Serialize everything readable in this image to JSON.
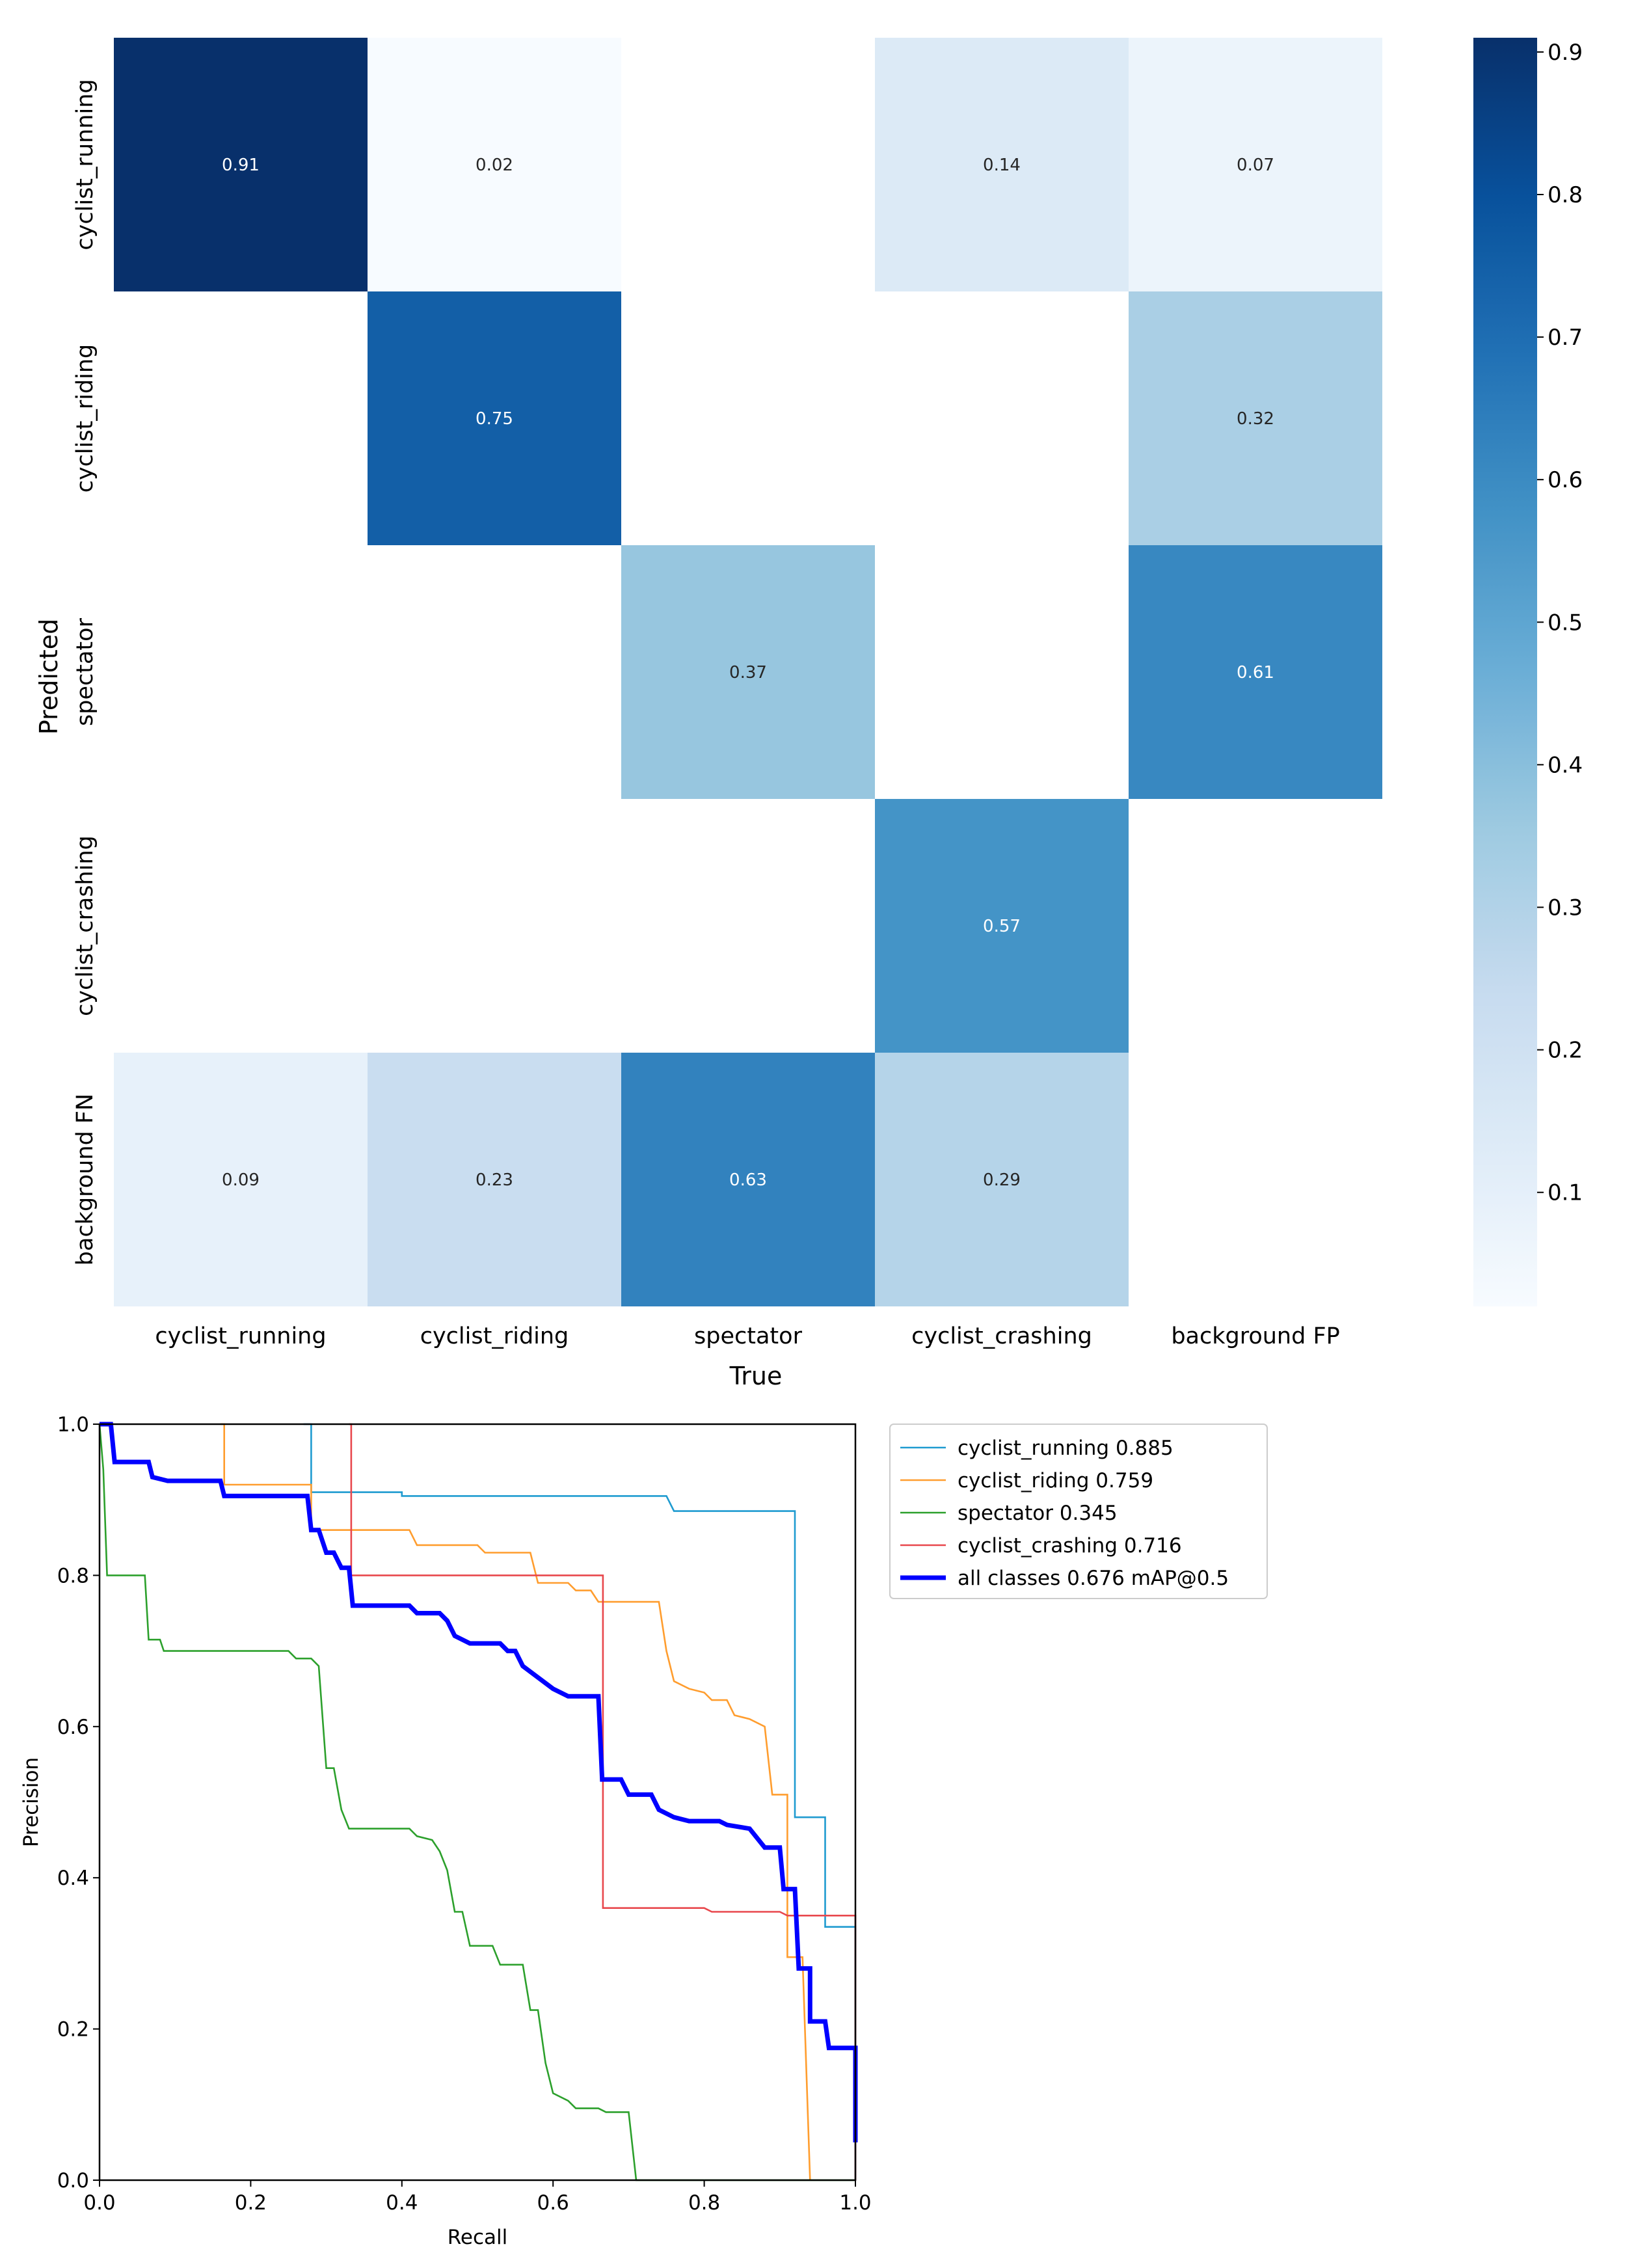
{
  "colors": {
    "cmap": [
      "#f7fbff",
      "#deebf7",
      "#c6dbef",
      "#9ecae1",
      "#6baed6",
      "#4292c6",
      "#2171b5",
      "#08519c",
      "#08306b"
    ],
    "cell_text_light": "#ffffff",
    "cell_text_dark": "#262626",
    "cyclist_running": "#1f9bd0",
    "cyclist_riding": "#ff9d2e",
    "spectator": "#2ca02c",
    "cyclist_crashing": "#e8474c",
    "all_classes": "#0000ff"
  },
  "chart_data": [
    {
      "type": "heatmap",
      "name": "confusion_matrix",
      "xlabel": "True",
      "ylabel": "Predicted",
      "x_categories": [
        "cyclist_running",
        "cyclist_riding",
        "spectator",
        "cyclist_crashing",
        "background FP"
      ],
      "y_categories": [
        "cyclist_running",
        "cyclist_riding",
        "spectator",
        "cyclist_crashing",
        "background FN"
      ],
      "values": [
        [
          0.91,
          0.02,
          null,
          0.14,
          0.07
        ],
        [
          null,
          0.75,
          null,
          null,
          0.32
        ],
        [
          null,
          null,
          0.37,
          null,
          0.61
        ],
        [
          null,
          null,
          null,
          0.57,
          null
        ],
        [
          0.09,
          0.23,
          0.63,
          0.29,
          null
        ]
      ],
      "colorbar": {
        "range": [
          0.02,
          0.91
        ],
        "ticks": [
          0.1,
          0.2,
          0.3,
          0.4,
          0.5,
          0.6,
          0.7,
          0.8,
          0.9
        ],
        "tick_labels": [
          "0.1",
          "0.2",
          "0.3",
          "0.4",
          "0.5",
          "0.6",
          "0.7",
          "0.8",
          "0.9"
        ]
      }
    },
    {
      "type": "line",
      "name": "precision_recall_curve",
      "xlabel": "Recall",
      "ylabel": "Precision",
      "xlim": [
        0,
        1
      ],
      "ylim": [
        0,
        1
      ],
      "x_ticks": [
        0.0,
        0.2,
        0.4,
        0.6,
        0.8,
        1.0
      ],
      "x_tick_labels": [
        "0.0",
        "0.2",
        "0.4",
        "0.6",
        "0.8",
        "1.0"
      ],
      "y_ticks": [
        0.0,
        0.2,
        0.4,
        0.6,
        0.8,
        1.0
      ],
      "y_tick_labels": [
        "0.0",
        "0.2",
        "0.4",
        "0.6",
        "0.8",
        "1.0"
      ],
      "legend_position": "right, outside plot, upper",
      "series": [
        {
          "name": "cyclist_running",
          "legend": "cyclist_running 0.885",
          "color_key": "cyclist_running",
          "bold": false,
          "points": [
            [
              0.27,
              1.0
            ],
            [
              0.28,
              1.0
            ],
            [
              0.28,
              0.91
            ],
            [
              0.4,
              0.91
            ],
            [
              0.4,
              0.905
            ],
            [
              0.75,
              0.905
            ],
            [
              0.76,
              0.885
            ],
            [
              0.92,
              0.885
            ],
            [
              0.92,
              0.48
            ],
            [
              0.96,
              0.48
            ],
            [
              0.96,
              0.335
            ],
            [
              1.0,
              0.335
            ],
            [
              1.0,
              0.0
            ]
          ]
        },
        {
          "name": "cyclist_riding",
          "legend": "cyclist_riding 0.759",
          "color_key": "cyclist_riding",
          "bold": false,
          "points": [
            [
              0.16,
              1.0
            ],
            [
              0.165,
              1.0
            ],
            [
              0.165,
              0.92
            ],
            [
              0.28,
              0.92
            ],
            [
              0.28,
              0.86
            ],
            [
              0.41,
              0.86
            ],
            [
              0.42,
              0.84
            ],
            [
              0.5,
              0.84
            ],
            [
              0.51,
              0.83
            ],
            [
              0.57,
              0.83
            ],
            [
              0.58,
              0.79
            ],
            [
              0.62,
              0.79
            ],
            [
              0.63,
              0.78
            ],
            [
              0.65,
              0.78
            ],
            [
              0.66,
              0.765
            ],
            [
              0.71,
              0.765
            ],
            [
              0.74,
              0.765
            ],
            [
              0.75,
              0.7
            ],
            [
              0.76,
              0.66
            ],
            [
              0.78,
              0.65
            ],
            [
              0.8,
              0.645
            ],
            [
              0.81,
              0.635
            ],
            [
              0.83,
              0.635
            ],
            [
              0.84,
              0.615
            ],
            [
              0.86,
              0.61
            ],
            [
              0.88,
              0.6
            ],
            [
              0.89,
              0.51
            ],
            [
              0.91,
              0.51
            ],
            [
              0.91,
              0.295
            ],
            [
              0.93,
              0.295
            ],
            [
              0.94,
              0.0
            ]
          ]
        },
        {
          "name": "spectator",
          "legend": "spectator 0.345",
          "color_key": "spectator",
          "bold": false,
          "points": [
            [
              0.0,
              1.0
            ],
            [
              0.005,
              0.94
            ],
            [
              0.01,
              0.8
            ],
            [
              0.06,
              0.8
            ],
            [
              0.065,
              0.715
            ],
            [
              0.08,
              0.715
            ],
            [
              0.085,
              0.7
            ],
            [
              0.25,
              0.7
            ],
            [
              0.26,
              0.69
            ],
            [
              0.28,
              0.69
            ],
            [
              0.29,
              0.68
            ],
            [
              0.3,
              0.545
            ],
            [
              0.31,
              0.545
            ],
            [
              0.32,
              0.49
            ],
            [
              0.33,
              0.465
            ],
            [
              0.41,
              0.465
            ],
            [
              0.42,
              0.455
            ],
            [
              0.44,
              0.45
            ],
            [
              0.45,
              0.435
            ],
            [
              0.46,
              0.41
            ],
            [
              0.47,
              0.355
            ],
            [
              0.48,
              0.355
            ],
            [
              0.49,
              0.31
            ],
            [
              0.52,
              0.31
            ],
            [
              0.53,
              0.285
            ],
            [
              0.56,
              0.285
            ],
            [
              0.57,
              0.225
            ],
            [
              0.58,
              0.225
            ],
            [
              0.59,
              0.155
            ],
            [
              0.6,
              0.115
            ],
            [
              0.62,
              0.105
            ],
            [
              0.63,
              0.095
            ],
            [
              0.66,
              0.095
            ],
            [
              0.67,
              0.09
            ],
            [
              0.7,
              0.09
            ],
            [
              0.71,
              0.0
            ],
            [
              1.0,
              0.0
            ]
          ]
        },
        {
          "name": "cyclist_crashing",
          "legend": "cyclist_crashing 0.716",
          "color_key": "cyclist_crashing",
          "bold": false,
          "points": [
            [
              0.33,
              1.0
            ],
            [
              0.333,
              1.0
            ],
            [
              0.333,
              0.8
            ],
            [
              0.666,
              0.8
            ],
            [
              0.666,
              0.36
            ],
            [
              0.8,
              0.36
            ],
            [
              0.81,
              0.355
            ],
            [
              0.9,
              0.355
            ],
            [
              0.91,
              0.35
            ],
            [
              1.0,
              0.35
            ],
            [
              1.0,
              0.0
            ]
          ]
        },
        {
          "name": "all classes",
          "legend": "all classes 0.676 mAP@0.5",
          "color_key": "all_classes",
          "bold": true,
          "points": [
            [
              0.0,
              1.0
            ],
            [
              0.015,
              1.0
            ],
            [
              0.02,
              0.95
            ],
            [
              0.065,
              0.95
            ],
            [
              0.07,
              0.93
            ],
            [
              0.09,
              0.925
            ],
            [
              0.16,
              0.925
            ],
            [
              0.165,
              0.905
            ],
            [
              0.27,
              0.905
            ],
            [
              0.275,
              0.905
            ],
            [
              0.28,
              0.86
            ],
            [
              0.29,
              0.86
            ],
            [
              0.3,
              0.83
            ],
            [
              0.31,
              0.83
            ],
            [
              0.32,
              0.81
            ],
            [
              0.33,
              0.81
            ],
            [
              0.335,
              0.76
            ],
            [
              0.41,
              0.76
            ],
            [
              0.42,
              0.75
            ],
            [
              0.45,
              0.75
            ],
            [
              0.46,
              0.74
            ],
            [
              0.47,
              0.72
            ],
            [
              0.49,
              0.71
            ],
            [
              0.53,
              0.71
            ],
            [
              0.54,
              0.7
            ],
            [
              0.55,
              0.7
            ],
            [
              0.56,
              0.68
            ],
            [
              0.58,
              0.665
            ],
            [
              0.6,
              0.65
            ],
            [
              0.62,
              0.64
            ],
            [
              0.66,
              0.64
            ],
            [
              0.665,
              0.53
            ],
            [
              0.69,
              0.53
            ],
            [
              0.7,
              0.51
            ],
            [
              0.73,
              0.51
            ],
            [
              0.74,
              0.49
            ],
            [
              0.76,
              0.48
            ],
            [
              0.78,
              0.475
            ],
            [
              0.82,
              0.475
            ],
            [
              0.83,
              0.47
            ],
            [
              0.86,
              0.465
            ],
            [
              0.88,
              0.44
            ],
            [
              0.9,
              0.44
            ],
            [
              0.905,
              0.385
            ],
            [
              0.92,
              0.385
            ],
            [
              0.925,
              0.28
            ],
            [
              0.94,
              0.28
            ],
            [
              0.94,
              0.21
            ],
            [
              0.96,
              0.21
            ],
            [
              0.965,
              0.175
            ],
            [
              1.0,
              0.175
            ],
            [
              1.0,
              0.05
            ]
          ]
        }
      ]
    }
  ]
}
